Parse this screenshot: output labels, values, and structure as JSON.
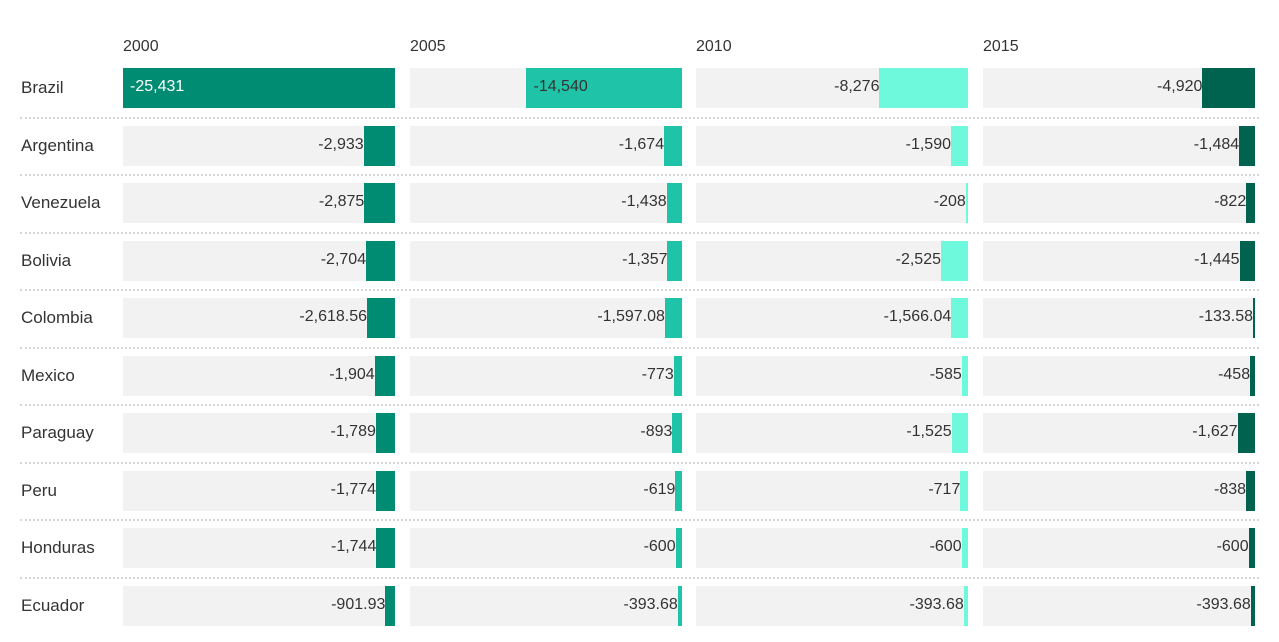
{
  "chart_data": {
    "type": "bar",
    "years": [
      "2000",
      "2005",
      "2010",
      "2015"
    ],
    "colors": [
      "#008b73",
      "#1fc4a8",
      "#6ef8dc",
      "#00634f"
    ],
    "categories": [
      "Brazil",
      "Argentina",
      "Venezuela",
      "Bolivia",
      "Colombia",
      "Mexico",
      "Paraguay",
      "Peru",
      "Honduras",
      "Ecuador"
    ],
    "series": [
      {
        "values": [
          -25431,
          -2933,
          -2875,
          -2704,
          -2618.56,
          -1904,
          -1789,
          -1774,
          -1744,
          -901.93
        ],
        "labels": [
          "-25,431",
          "-2,933",
          "-2,875",
          "-2,704",
          "-2,618.56",
          "-1,904",
          "-1,789",
          "-1,774",
          "-1,744",
          "-901.93"
        ]
      },
      {
        "values": [
          -14540,
          -1674,
          -1438,
          -1357,
          -1597.08,
          -773,
          -893,
          -619,
          -600,
          -393.68
        ],
        "labels": [
          "-14,540",
          "-1,674",
          "-1,438",
          "-1,357",
          "-1,597.08",
          "-773",
          "-893",
          "-619",
          "-600",
          "-393.68"
        ]
      },
      {
        "values": [
          -8276,
          -1590,
          -208,
          -2525,
          -1566.04,
          -585,
          -1525,
          -717,
          -600,
          -393.68
        ],
        "labels": [
          "-8,276",
          "-1,590",
          "-208",
          "-2,525",
          "-1,566.04",
          "-585",
          "-1,525",
          "-717",
          "-600",
          "-393.68"
        ]
      },
      {
        "values": [
          -4920,
          -1484,
          -822,
          -1445,
          -133.58,
          -458,
          -1627,
          -838,
          -600,
          -393.68
        ],
        "labels": [
          "-4,920",
          "-1,484",
          "-822",
          "-1,445",
          "-133.58",
          "-458",
          "-1,627",
          "-838",
          "-600",
          "-393.68"
        ]
      }
    ],
    "xlim": [
      -25431,
      0
    ],
    "grid": false,
    "legend": "none"
  }
}
